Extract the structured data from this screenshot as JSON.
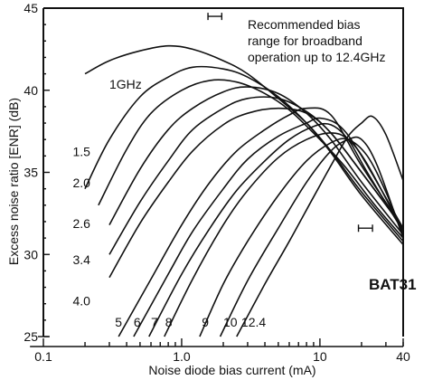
{
  "chart_data": {
    "type": "line",
    "title": "",
    "xlabel": "Noise diode bias current (mA)",
    "ylabel": "Excess noise ratio [ENR] (dB)",
    "x_scale": "log",
    "xlim": [
      0.1,
      40
    ],
    "ylim": [
      25,
      45
    ],
    "x_ticks": [
      {
        "value": 0.1,
        "label": "0.1"
      },
      {
        "value": 1.0,
        "label": "1.0"
      },
      {
        "value": 10,
        "label": "10"
      },
      {
        "value": 40,
        "label": "40"
      }
    ],
    "y_ticks": [
      {
        "value": 25,
        "label": "25"
      },
      {
        "value": 30,
        "label": "30"
      },
      {
        "value": 35,
        "label": "35"
      },
      {
        "value": 40,
        "label": "40"
      },
      {
        "value": 45,
        "label": "45"
      }
    ],
    "annotations": {
      "legend_text": [
        "Recommended bias",
        "range for broadband",
        "operation up to 12.4GHz"
      ],
      "device": "BAT31"
    },
    "recommended_range_markers": [
      {
        "x": [
          1.55,
          1.95
        ],
        "y": 44.5
      },
      {
        "x": [
          19,
          24
        ],
        "y": 31.6
      }
    ],
    "series": [
      {
        "name": "1GHz",
        "label_pos": [
          0.3,
          40.1
        ],
        "points": [
          [
            0.2,
            41.0
          ],
          [
            0.3,
            41.8
          ],
          [
            0.5,
            42.4
          ],
          [
            0.8,
            42.7
          ],
          [
            1.2,
            42.5
          ],
          [
            2.0,
            41.8
          ],
          [
            3.0,
            41.0
          ],
          [
            5.0,
            39.5
          ],
          [
            8.0,
            38.0
          ],
          [
            12,
            36.3
          ],
          [
            20,
            33.8
          ],
          [
            40,
            30.8
          ]
        ]
      },
      {
        "name": "1.5",
        "label_pos": [
          0.163,
          36.0
        ],
        "points": [
          [
            0.2,
            34.0
          ],
          [
            0.3,
            37.0
          ],
          [
            0.5,
            39.6
          ],
          [
            0.8,
            40.8
          ],
          [
            1.2,
            41.4
          ],
          [
            2.0,
            41.3
          ],
          [
            3.0,
            40.8
          ],
          [
            5.0,
            39.6
          ],
          [
            8.0,
            38.0
          ],
          [
            12,
            36.2
          ],
          [
            20,
            33.6
          ],
          [
            40,
            30.6
          ]
        ]
      },
      {
        "name": "2.0",
        "label_pos": [
          0.163,
          34.1
        ],
        "points": [
          [
            0.25,
            33.0
          ],
          [
            0.4,
            36.4
          ],
          [
            0.6,
            38.6
          ],
          [
            1.0,
            40.0
          ],
          [
            1.6,
            40.6
          ],
          [
            2.5,
            40.5
          ],
          [
            4.0,
            39.8
          ],
          [
            6.0,
            38.8
          ],
          [
            10,
            37.0
          ],
          [
            15,
            35.4
          ],
          [
            25,
            33.0
          ],
          [
            40,
            31.0
          ]
        ]
      },
      {
        "name": "2.6",
        "label_pos": [
          0.163,
          31.6
        ],
        "points": [
          [
            0.3,
            31.8
          ],
          [
            0.5,
            35.2
          ],
          [
            0.8,
            37.6
          ],
          [
            1.2,
            38.9
          ],
          [
            2.0,
            39.9
          ],
          [
            3.0,
            40.2
          ],
          [
            5.0,
            39.8
          ],
          [
            8.0,
            38.6
          ],
          [
            12,
            37.0
          ],
          [
            20,
            34.4
          ],
          [
            40,
            31.2
          ]
        ]
      },
      {
        "name": "3.4",
        "label_pos": [
          0.163,
          29.4
        ],
        "points": [
          [
            0.3,
            30.0
          ],
          [
            0.5,
            33.2
          ],
          [
            0.8,
            35.7
          ],
          [
            1.2,
            37.6
          ],
          [
            2.0,
            38.9
          ],
          [
            3.0,
            39.5
          ],
          [
            5.0,
            39.5
          ],
          [
            8.0,
            38.7
          ],
          [
            12,
            37.4
          ],
          [
            20,
            35.0
          ],
          [
            40,
            31.6
          ]
        ]
      },
      {
        "name": "4.0",
        "label_pos": [
          0.163,
          26.9
        ],
        "points": [
          [
            0.3,
            28.6
          ],
          [
            0.5,
            31.9
          ],
          [
            0.8,
            34.4
          ],
          [
            1.2,
            36.3
          ],
          [
            2.0,
            37.9
          ],
          [
            3.0,
            38.6
          ],
          [
            5.0,
            38.9
          ],
          [
            8.0,
            38.6
          ],
          [
            12,
            37.4
          ],
          [
            20,
            35.0
          ],
          [
            40,
            31.6
          ]
        ]
      },
      {
        "name": "5",
        "label_pos": [
          0.33,
          25.6
        ],
        "points": [
          [
            0.35,
            25.0
          ],
          [
            0.6,
            28.5
          ],
          [
            1.0,
            31.8
          ],
          [
            1.6,
            34.4
          ],
          [
            2.5,
            36.3
          ],
          [
            4.0,
            37.6
          ],
          [
            6.0,
            38.5
          ],
          [
            8.0,
            38.9
          ],
          [
            12,
            38.5
          ],
          [
            20,
            35.4
          ],
          [
            40,
            31.6
          ]
        ]
      },
      {
        "name": "6",
        "label_pos": [
          0.45,
          25.6
        ],
        "points": [
          [
            0.45,
            25.0
          ],
          [
            0.8,
            28.8
          ],
          [
            1.2,
            31.4
          ],
          [
            2.0,
            34.0
          ],
          [
            3.0,
            35.8
          ],
          [
            5.0,
            37.2
          ],
          [
            8.0,
            38.0
          ],
          [
            10,
            38.3
          ],
          [
            14,
            37.8
          ],
          [
            20,
            36.0
          ],
          [
            40,
            31.6
          ]
        ]
      },
      {
        "name": "7",
        "label_pos": [
          0.6,
          25.6
        ],
        "points": [
          [
            0.58,
            25.0
          ],
          [
            1.0,
            28.8
          ],
          [
            1.6,
            31.6
          ],
          [
            2.5,
            33.9
          ],
          [
            4.0,
            35.7
          ],
          [
            6.0,
            37.0
          ],
          [
            9.0,
            37.8
          ],
          [
            12,
            37.9
          ],
          [
            16,
            37.0
          ],
          [
            22,
            35.0
          ],
          [
            40,
            31.4
          ]
        ]
      },
      {
        "name": "8",
        "label_pos": [
          0.76,
          25.6
        ],
        "points": [
          [
            0.75,
            25.0
          ],
          [
            1.2,
            28.5
          ],
          [
            2.0,
            31.8
          ],
          [
            3.0,
            33.9
          ],
          [
            5.0,
            35.9
          ],
          [
            8.0,
            37.0
          ],
          [
            12,
            37.4
          ],
          [
            16,
            37.0
          ],
          [
            22,
            35.5
          ],
          [
            40,
            31.4
          ]
        ]
      },
      {
        "name": "9",
        "label_pos": [
          1.4,
          25.6
        ],
        "points": [
          [
            1.35,
            25.0
          ],
          [
            2.0,
            28.2
          ],
          [
            3.0,
            30.8
          ],
          [
            5.0,
            33.6
          ],
          [
            8.0,
            35.7
          ],
          [
            12,
            36.8
          ],
          [
            16,
            37.0
          ],
          [
            22,
            36.0
          ],
          [
            30,
            33.8
          ],
          [
            40,
            31.2
          ]
        ]
      },
      {
        "name": "10",
        "label_pos": [
          2.0,
          25.6
        ],
        "points": [
          [
            1.9,
            25.0
          ],
          [
            3.0,
            28.4
          ],
          [
            5.0,
            31.6
          ],
          [
            8.0,
            34.4
          ],
          [
            12,
            36.3
          ],
          [
            16,
            37.0
          ],
          [
            20,
            37.0
          ],
          [
            26,
            35.4
          ],
          [
            40,
            31.0
          ]
        ]
      },
      {
        "name": "12.4",
        "label_pos": [
          2.7,
          25.6
        ],
        "points": [
          [
            2.5,
            25.0
          ],
          [
            4.0,
            28.2
          ],
          [
            6.0,
            30.8
          ],
          [
            9.0,
            33.5
          ],
          [
            12,
            35.4
          ],
          [
            16,
            37.2
          ],
          [
            20,
            38.0
          ],
          [
            24,
            38.4
          ],
          [
            30,
            37.3
          ],
          [
            40,
            34.5
          ]
        ]
      }
    ]
  }
}
